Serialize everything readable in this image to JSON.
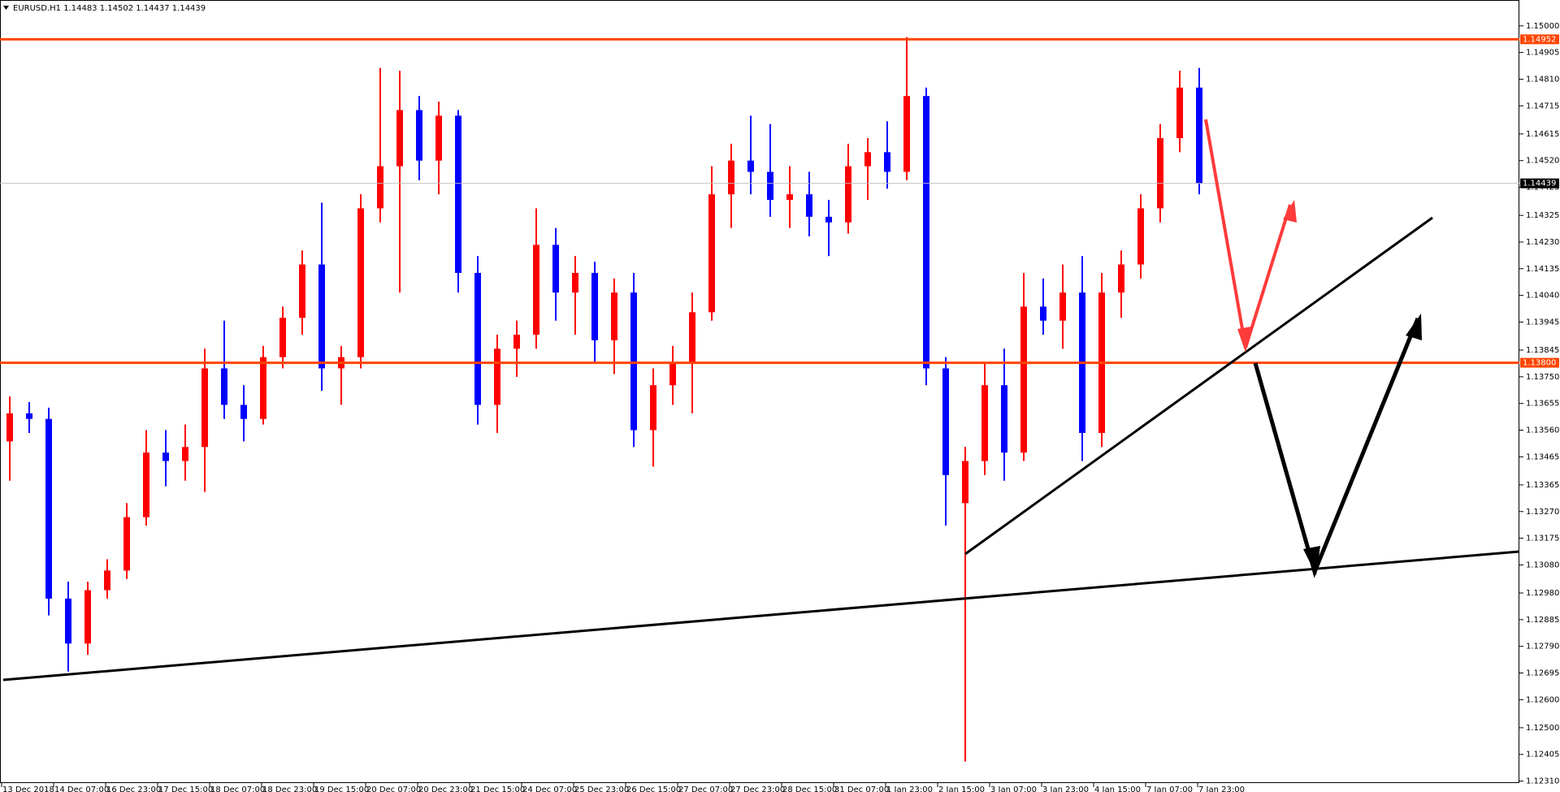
{
  "chart_data": {
    "type": "candlestick",
    "title": "EURUSD.H1  1.14483 1.14502 1.14437 1.14439",
    "up_color": "#ff0000",
    "down_color": "#0000ff",
    "ylim": [
      1.12303,
      1.15092
    ],
    "yticks": [
      {
        "value": 1.15,
        "label": "1.15000"
      },
      {
        "value": 1.14905,
        "label": "1.14905"
      },
      {
        "value": 1.1481,
        "label": "1.14810"
      },
      {
        "value": 1.14715,
        "label": "1.14715"
      },
      {
        "value": 1.14615,
        "label": "1.14615"
      },
      {
        "value": 1.1452,
        "label": "1.14520"
      },
      {
        "value": 1.14425,
        "label": "1.14425"
      },
      {
        "value": 1.14325,
        "label": "1.14325"
      },
      {
        "value": 1.1423,
        "label": "1.14230"
      },
      {
        "value": 1.14135,
        "label": "1.14135"
      },
      {
        "value": 1.1404,
        "label": "1.14040"
      },
      {
        "value": 1.13945,
        "label": "1.13945"
      },
      {
        "value": 1.13845,
        "label": "1.13845"
      },
      {
        "value": 1.1375,
        "label": "1.13750"
      },
      {
        "value": 1.13655,
        "label": "1.13655"
      },
      {
        "value": 1.1356,
        "label": "1.13560"
      },
      {
        "value": 1.13465,
        "label": "1.13465"
      },
      {
        "value": 1.13365,
        "label": "1.13365"
      },
      {
        "value": 1.1327,
        "label": "1.13270"
      },
      {
        "value": 1.13175,
        "label": "1.13175"
      },
      {
        "value": 1.1308,
        "label": "1.13080"
      },
      {
        "value": 1.1298,
        "label": "1.12980"
      },
      {
        "value": 1.12885,
        "label": "1.12885"
      },
      {
        "value": 1.1279,
        "label": "1.12790"
      },
      {
        "value": 1.12695,
        "label": "1.12695"
      },
      {
        "value": 1.126,
        "label": "1.12600"
      },
      {
        "value": 1.125,
        "label": "1.12500"
      },
      {
        "value": 1.12405,
        "label": "1.12405"
      },
      {
        "value": 1.1231,
        "label": "1.12310"
      }
    ],
    "levels": [
      {
        "value": 1.14952,
        "label": "1.14952",
        "color": "#ff4500"
      },
      {
        "value": 1.138,
        "label": "1.13800",
        "color": "#ff4500"
      }
    ],
    "current_price": {
      "value": 1.14439,
      "label": "1.14439"
    },
    "x_axis_labels": [
      "13 Dec 2018",
      "14 Dec 07:00",
      "16 Dec 23:00",
      "17 Dec 15:00",
      "18 Dec 07:00",
      "18 Dec 23:00",
      "19 Dec 15:00",
      "20 Dec 07:00",
      "20 Dec 23:00",
      "21 Dec 15:00",
      "24 Dec 07:00",
      "25 Dec 23:00",
      "26 Dec 15:00",
      "27 Dec 07:00",
      "27 Dec 23:00",
      "28 Dec 15:00",
      "31 Dec 07:00",
      "1 Jan 23:00",
      "2 Jan 15:00",
      "3 Jan 07:00",
      "3 Jan 23:00",
      "4 Jan 15:00",
      "7 Jan 07:00",
      "7 Jan 23:00"
    ],
    "candles": [
      [
        1.1352,
        1.1368,
        1.1338,
        1.1362
      ],
      [
        1.1362,
        1.1366,
        1.1355,
        1.136
      ],
      [
        1.136,
        1.1364,
        1.129,
        1.1296
      ],
      [
        1.1296,
        1.1302,
        1.127,
        1.128
      ],
      [
        1.128,
        1.1302,
        1.1276,
        1.1299
      ],
      [
        1.1299,
        1.131,
        1.1296,
        1.1306
      ],
      [
        1.1306,
        1.133,
        1.1303,
        1.1325
      ],
      [
        1.1325,
        1.1356,
        1.1322,
        1.1348
      ],
      [
        1.1348,
        1.1356,
        1.1336,
        1.1345
      ],
      [
        1.1345,
        1.1358,
        1.1338,
        1.135
      ],
      [
        1.135,
        1.1385,
        1.1334,
        1.1378
      ],
      [
        1.1378,
        1.1395,
        1.136,
        1.1365
      ],
      [
        1.1365,
        1.1372,
        1.1352,
        1.136
      ],
      [
        1.136,
        1.1386,
        1.1358,
        1.1382
      ],
      [
        1.1382,
        1.14,
        1.1378,
        1.1396
      ],
      [
        1.1396,
        1.142,
        1.139,
        1.1415
      ],
      [
        1.1415,
        1.1437,
        1.137,
        1.1378
      ],
      [
        1.1378,
        1.1386,
        1.1365,
        1.1382
      ],
      [
        1.1382,
        1.144,
        1.1378,
        1.1435
      ],
      [
        1.1435,
        1.1485,
        1.143,
        1.145
      ],
      [
        1.145,
        1.1484,
        1.1405,
        1.147
      ],
      [
        1.147,
        1.1475,
        1.1445,
        1.1452
      ],
      [
        1.1452,
        1.1473,
        1.144,
        1.1468
      ],
      [
        1.1468,
        1.147,
        1.1405,
        1.1412
      ],
      [
        1.1412,
        1.1418,
        1.1358,
        1.1365
      ],
      [
        1.1365,
        1.139,
        1.1355,
        1.1385
      ],
      [
        1.1385,
        1.1395,
        1.1375,
        1.139
      ],
      [
        1.139,
        1.1435,
        1.1385,
        1.1422
      ],
      [
        1.1422,
        1.1428,
        1.1395,
        1.1405
      ],
      [
        1.1405,
        1.1418,
        1.139,
        1.1412
      ],
      [
        1.1412,
        1.1416,
        1.138,
        1.1388
      ],
      [
        1.1388,
        1.141,
        1.1376,
        1.1405
      ],
      [
        1.1405,
        1.1412,
        1.135,
        1.1356
      ],
      [
        1.1356,
        1.1378,
        1.1343,
        1.1372
      ],
      [
        1.1372,
        1.1386,
        1.1365,
        1.138
      ],
      [
        1.138,
        1.1405,
        1.1362,
        1.1398
      ],
      [
        1.1398,
        1.145,
        1.1395,
        1.144
      ],
      [
        1.144,
        1.1458,
        1.1428,
        1.1452
      ],
      [
        1.1452,
        1.1468,
        1.144,
        1.1448
      ],
      [
        1.1448,
        1.1465,
        1.1432,
        1.1438
      ],
      [
        1.1438,
        1.145,
        1.1428,
        1.144
      ],
      [
        1.144,
        1.1448,
        1.1425,
        1.1432
      ],
      [
        1.1432,
        1.1438,
        1.1418,
        1.143
      ],
      [
        1.143,
        1.1458,
        1.1426,
        1.145
      ],
      [
        1.145,
        1.146,
        1.1438,
        1.1455
      ],
      [
        1.1455,
        1.1466,
        1.1442,
        1.1448
      ],
      [
        1.1448,
        1.1496,
        1.1445,
        1.1475
      ],
      [
        1.1475,
        1.1478,
        1.1372,
        1.1378
      ],
      [
        1.1378,
        1.1382,
        1.1322,
        1.134
      ],
      [
        1.133,
        1.135,
        1.1238,
        1.1345
      ],
      [
        1.1345,
        1.138,
        1.134,
        1.1372
      ],
      [
        1.1372,
        1.1385,
        1.1338,
        1.1348
      ],
      [
        1.1348,
        1.1412,
        1.1345,
        1.14
      ],
      [
        1.14,
        1.141,
        1.139,
        1.1395
      ],
      [
        1.1395,
        1.1415,
        1.1385,
        1.1405
      ],
      [
        1.1405,
        1.1418,
        1.1345,
        1.1355
      ],
      [
        1.1355,
        1.1412,
        1.135,
        1.1405
      ],
      [
        1.1405,
        1.142,
        1.1396,
        1.1415
      ],
      [
        1.1415,
        1.144,
        1.141,
        1.1435
      ],
      [
        1.1435,
        1.1465,
        1.143,
        1.146
      ],
      [
        1.146,
        1.1484,
        1.1455,
        1.1478
      ],
      [
        1.1478,
        1.1485,
        1.144,
        1.14439
      ]
    ]
  }
}
